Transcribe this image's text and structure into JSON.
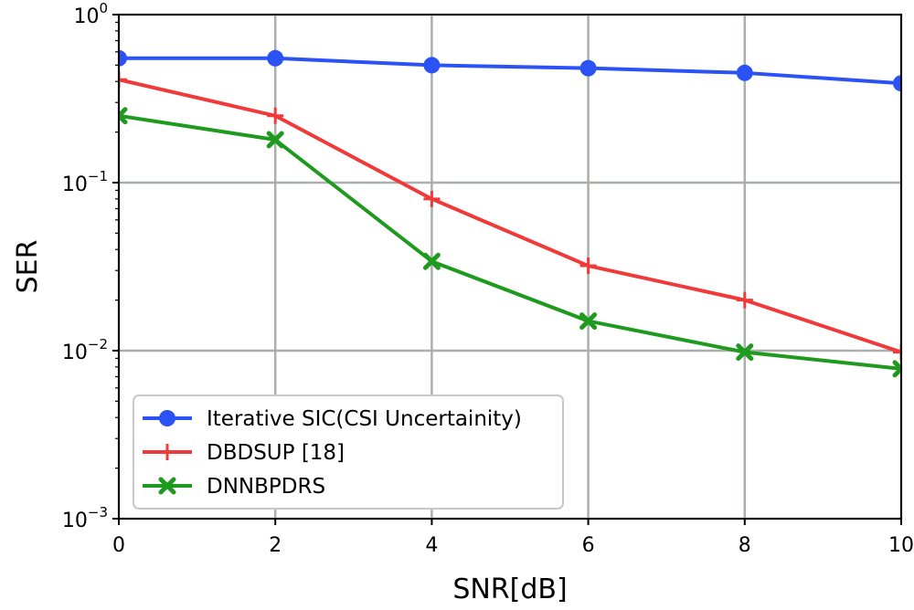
{
  "chart_data": {
    "type": "line",
    "title": "",
    "xlabel": "SNR[dB]",
    "ylabel": "SER",
    "yscale": "log",
    "xlim": [
      0,
      10
    ],
    "ylim": [
      0.001,
      1
    ],
    "grid": true,
    "legend_position": "bottom-left",
    "x_ticks": [
      0,
      2,
      4,
      6,
      8,
      10
    ],
    "x_tick_labels": [
      "0",
      "2",
      "4",
      "6",
      "8",
      "10"
    ],
    "y_ticks": [
      {
        "value": 1,
        "base": "10",
        "exp": "0"
      },
      {
        "value": 0.1,
        "base": "10",
        "exp": "−1"
      },
      {
        "value": 0.01,
        "base": "10",
        "exp": "−2"
      },
      {
        "value": 0.001,
        "base": "10",
        "exp": "−3"
      }
    ],
    "x": [
      0,
      2,
      4,
      6,
      8,
      10
    ],
    "series": [
      {
        "name": "Iterative SIC(CSI Uncertainity)",
        "color": "#2a52f5",
        "marker": "circle",
        "values": [
          0.55,
          0.55,
          0.5,
          0.48,
          0.45,
          0.39
        ]
      },
      {
        "name": "DBDSUP [18]",
        "color": "#f03a3a",
        "marker": "plus",
        "values": [
          0.41,
          0.25,
          0.08,
          0.032,
          0.02,
          0.0098
        ]
      },
      {
        "name": "DNNBPDRS",
        "color": "#1e9a1e",
        "marker": "x",
        "values": [
          0.25,
          0.18,
          0.034,
          0.015,
          0.0098,
          0.0078
        ]
      }
    ]
  }
}
